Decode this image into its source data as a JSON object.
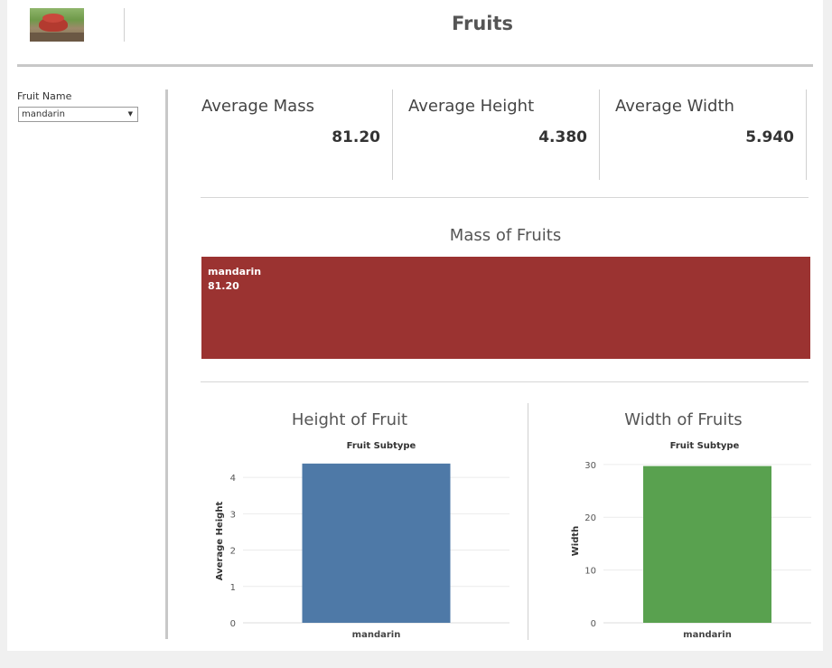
{
  "header": {
    "title": "Fruits"
  },
  "filter": {
    "label": "Fruit Name",
    "value": "mandarin"
  },
  "kpis": [
    {
      "title": "Average Mass",
      "value": "81.20"
    },
    {
      "title": "Average Height",
      "value": "4.380"
    },
    {
      "title": "Average Width",
      "value": "5.940"
    }
  ],
  "mass_chart": {
    "title": "Mass of Fruits",
    "label": "mandarin",
    "value": "81.20",
    "color": "#9b3331"
  },
  "chart_data": [
    {
      "type": "bar",
      "title": "Height of Fruit",
      "subtitle": "Fruit Subtype",
      "ylabel": "Average Height",
      "categories": [
        "mandarin"
      ],
      "values": [
        4.38
      ],
      "ylim": [
        0,
        4.5
      ],
      "yticks": [
        "0",
        "1",
        "2",
        "3",
        "4"
      ],
      "color": "#4e79a7",
      "grid": true
    },
    {
      "type": "bar",
      "title": "Width of Fruits",
      "subtitle": "Fruit Subtype",
      "ylabel": "Width",
      "categories": [
        "mandarin"
      ],
      "values": [
        29.7
      ],
      "ylim": [
        0,
        31
      ],
      "yticks": [
        "0",
        "10",
        "20",
        "30"
      ],
      "color": "#59a14f",
      "grid": true
    }
  ]
}
